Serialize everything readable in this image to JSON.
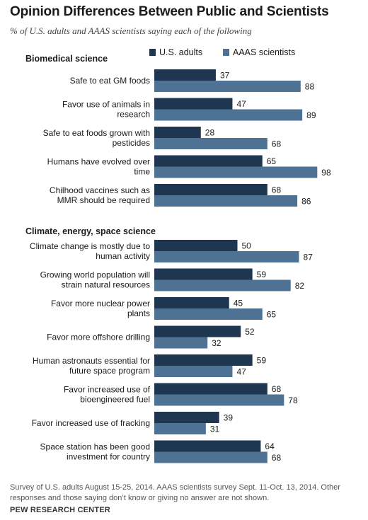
{
  "chart_data": {
    "type": "bar",
    "orientation": "horizontal",
    "title": "Opinion Differences Between Public and Scientists",
    "subtitle": "% of U.S. adults and AAAS scientists saying each of the following",
    "legend": {
      "placement": "top-right",
      "entries": [
        {
          "name": "U.S. adults",
          "color": "#1f3650"
        },
        {
          "name": "AAAS scientists",
          "color": "#4e7294"
        }
      ]
    },
    "xlim": [
      0,
      100
    ],
    "grid": false,
    "sections": [
      {
        "label": "Biomedical science",
        "items": [
          {
            "label": [
              "Safe to eat GM foods"
            ],
            "values": [
              37,
              88
            ]
          },
          {
            "label": [
              "Favor use of animals in",
              "research"
            ],
            "values": [
              47,
              89
            ]
          },
          {
            "label": [
              "Safe to eat foods grown with",
              "pesticides"
            ],
            "values": [
              28,
              68
            ]
          },
          {
            "label": [
              "Humans have evolved over",
              "time"
            ],
            "values": [
              65,
              98
            ]
          },
          {
            "label": [
              "Chilhood vaccines such as",
              "MMR should be required"
            ],
            "values": [
              68,
              86
            ]
          }
        ]
      },
      {
        "label": "Climate, energy, space science",
        "items": [
          {
            "label": [
              "Climate change is mostly due to",
              "human activity"
            ],
            "values": [
              50,
              87
            ]
          },
          {
            "label": [
              "Growing world population will",
              "strain natural resources"
            ],
            "values": [
              59,
              82
            ]
          },
          {
            "label": [
              "Favor more nuclear power",
              "plants"
            ],
            "values": [
              45,
              65
            ]
          },
          {
            "label": [
              "Favor more offshore drilling"
            ],
            "values": [
              52,
              32
            ]
          },
          {
            "label": [
              "Human astronauts essential for",
              "future space program"
            ],
            "values": [
              59,
              47
            ]
          },
          {
            "label": [
              "Favor increased use of",
              "bioengineered fuel"
            ],
            "values": [
              68,
              78
            ]
          },
          {
            "label": [
              "Favor increased use of fracking"
            ],
            "values": [
              39,
              31
            ]
          },
          {
            "label": [
              "Space station has been good",
              "investment for country"
            ],
            "values": [
              64,
              68
            ]
          }
        ]
      }
    ]
  },
  "footnote": "Survey of U.S. adults August 15-25, 2014. AAAS scientists survey Sept. 11-Oct. 13, 2014. Other responses and those saying don’t know or giving no answer are not shown.",
  "source": "PEW RESEARCH CENTER"
}
